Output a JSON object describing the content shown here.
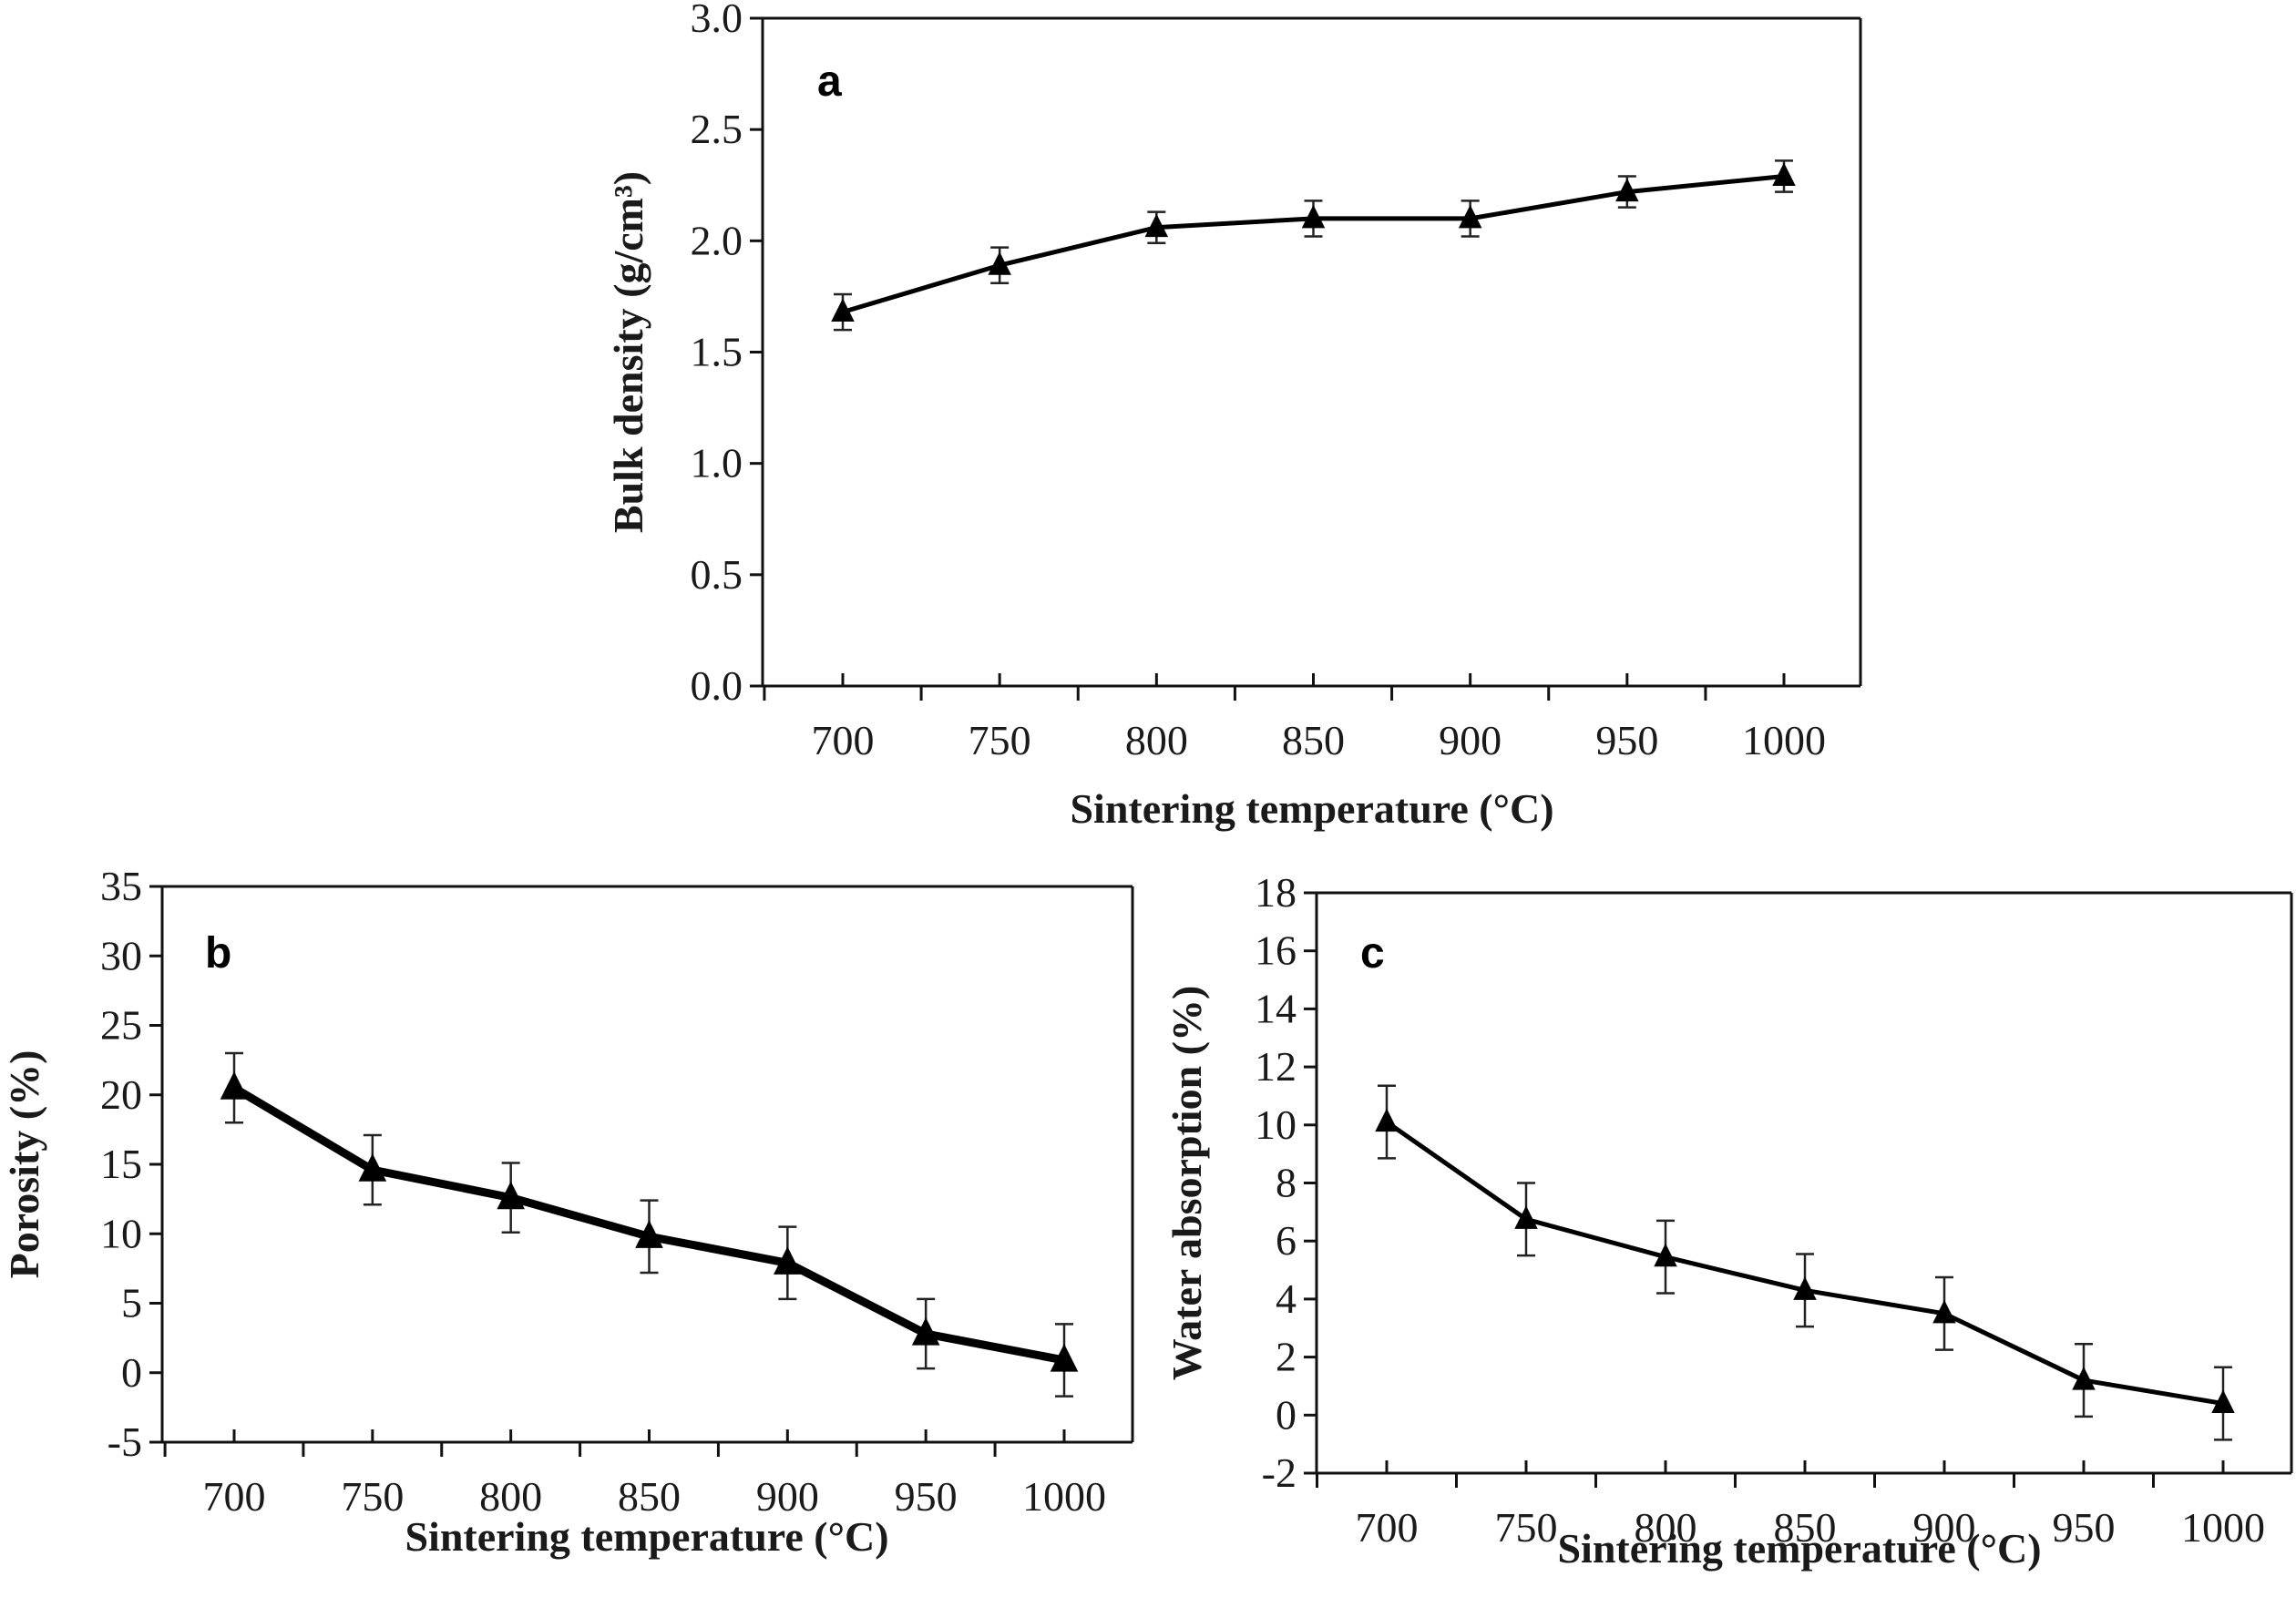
{
  "chart_data": [
    {
      "id": "a",
      "type": "line",
      "panel_label": "a",
      "title": "",
      "xlabel": "Sintering temperature (°C)",
      "ylabel": "Bulk density (g/cm³)",
      "x": [
        700,
        750,
        800,
        850,
        900,
        950,
        1000
      ],
      "x_tick_labels": [
        "700",
        "750",
        "800",
        "850",
        "900",
        "950",
        "1000"
      ],
      "y_ticks": [
        0.0,
        0.5,
        1.0,
        1.5,
        2.0,
        2.5,
        3.0
      ],
      "y_tick_labels": [
        "0.0",
        "0.5",
        "1.0",
        "1.5",
        "2.0",
        "2.5",
        "3.0"
      ],
      "ylim": [
        0,
        3.0
      ],
      "grid": false,
      "marker": "triangle",
      "series": [
        {
          "name": "Bulk density",
          "values": [
            1.68,
            1.89,
            2.06,
            2.1,
            2.1,
            2.22,
            2.29
          ],
          "error": [
            0.08,
            0.08,
            0.07,
            0.08,
            0.08,
            0.07,
            0.07
          ]
        }
      ]
    },
    {
      "id": "b",
      "type": "line",
      "panel_label": "b",
      "title": "",
      "xlabel": "Sintering temperature (°C)",
      "ylabel": "Porosity (%)",
      "x": [
        700,
        750,
        800,
        850,
        900,
        950,
        1000
      ],
      "x_tick_labels": [
        "700",
        "750",
        "800",
        "850",
        "900",
        "950",
        "1000"
      ],
      "y_ticks": [
        -5,
        0,
        5,
        10,
        15,
        20,
        25,
        30,
        35
      ],
      "y_tick_labels": [
        "-5",
        "0",
        "5",
        "10",
        "15",
        "20",
        "25",
        "30",
        "35"
      ],
      "ylim": [
        -5,
        35
      ],
      "grid": false,
      "marker": "triangle",
      "series": [
        {
          "name": "Porosity",
          "values": [
            20.5,
            14.6,
            12.6,
            9.8,
            7.9,
            2.8,
            0.9
          ],
          "error": [
            2.5,
            2.5,
            2.5,
            2.6,
            2.6,
            2.5,
            2.6
          ]
        }
      ]
    },
    {
      "id": "c",
      "type": "line",
      "panel_label": "c",
      "title": "",
      "xlabel": "Sintering temperature (°C)",
      "ylabel": "Water absorption (%)",
      "x": [
        700,
        750,
        800,
        850,
        900,
        950,
        1000
      ],
      "x_tick_labels": [
        "700",
        "750",
        "800",
        "850",
        "900",
        "950",
        "1000"
      ],
      "y_ticks": [
        -2,
        0,
        2,
        4,
        6,
        8,
        10,
        12,
        14,
        16,
        18
      ],
      "y_tick_labels": [
        "-2",
        "0",
        "2",
        "4",
        "6",
        "8",
        "10",
        "12",
        "14",
        "16",
        "18"
      ],
      "ylim": [
        -2,
        18
      ],
      "grid": false,
      "marker": "triangle",
      "series": [
        {
          "name": "Water absorption",
          "values": [
            10.1,
            6.75,
            5.45,
            4.3,
            3.5,
            1.2,
            0.4
          ],
          "error": [
            1.25,
            1.25,
            1.25,
            1.25,
            1.25,
            1.25,
            1.25
          ]
        }
      ]
    }
  ]
}
